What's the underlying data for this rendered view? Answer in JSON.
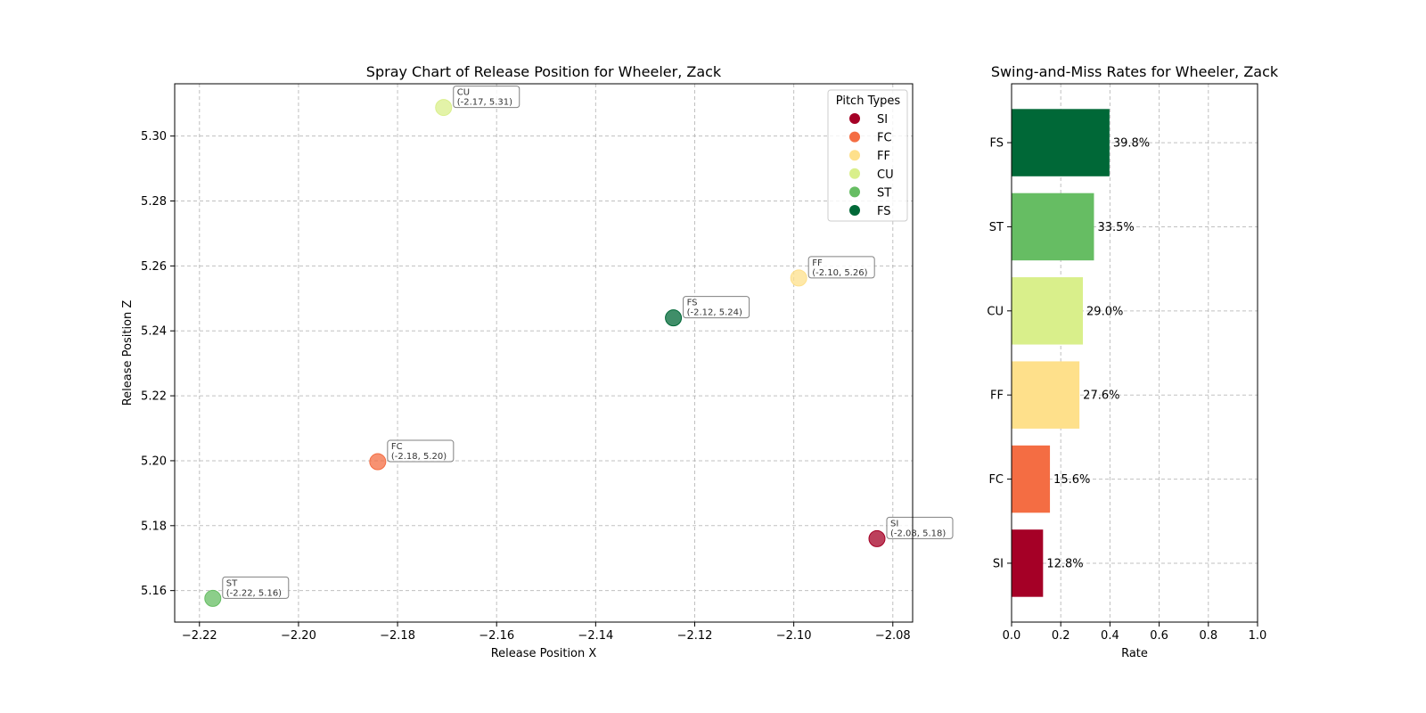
{
  "chart_data": [
    {
      "type": "scatter",
      "title": "Spray Chart of Release Position for Wheeler, Zack",
      "xlabel": "Release Position X",
      "ylabel": "Release Position Z",
      "xlim": [
        -2.225,
        -2.076
      ],
      "ylim": [
        5.1503,
        5.3161
      ],
      "xticks": [
        -2.22,
        -2.2,
        -2.18,
        -2.16,
        -2.14,
        -2.12,
        -2.1,
        -2.08
      ],
      "xtick_labels": [
        "−2.22",
        "−2.20",
        "−2.18",
        "−2.16",
        "−2.14",
        "−2.12",
        "−2.10",
        "−2.08"
      ],
      "yticks": [
        5.16,
        5.18,
        5.2,
        5.22,
        5.24,
        5.26,
        5.28,
        5.3
      ],
      "ytick_labels": [
        "5.16",
        "5.18",
        "5.20",
        "5.22",
        "5.24",
        "5.26",
        "5.28",
        "5.30"
      ],
      "grid": true,
      "legend": {
        "title": "Pitch Types",
        "placement": "top-right",
        "entries": [
          {
            "label": "SI",
            "color": "#a50026"
          },
          {
            "label": "FC",
            "color": "#f46d43"
          },
          {
            "label": "FF",
            "color": "#fee08b"
          },
          {
            "label": "CU",
            "color": "#d9ef8b"
          },
          {
            "label": "ST",
            "color": "#66bd63"
          },
          {
            "label": "FS",
            "color": "#006837"
          }
        ]
      },
      "points": [
        {
          "name": "SI",
          "x": -2.0832,
          "y": 5.176,
          "color": "#a50026",
          "annotation": "(-2.08, 5.18)"
        },
        {
          "name": "FC",
          "x": -2.184,
          "y": 5.1997,
          "color": "#f46d43",
          "annotation": "(-2.18, 5.20)"
        },
        {
          "name": "FF",
          "x": -2.099,
          "y": 5.2563,
          "color": "#fee08b",
          "annotation": "(-2.10, 5.26)"
        },
        {
          "name": "CU",
          "x": -2.1707,
          "y": 5.3088,
          "color": "#d9ef8b",
          "annotation": "(-2.17, 5.31)"
        },
        {
          "name": "ST",
          "x": -2.2173,
          "y": 5.1576,
          "color": "#66bd63",
          "annotation": "(-2.22, 5.16)"
        },
        {
          "name": "FS",
          "x": -2.1243,
          "y": 5.244,
          "color": "#006837",
          "annotation": "(-2.12, 5.24)"
        }
      ]
    },
    {
      "type": "bar",
      "orientation": "horizontal",
      "title": "Swing-and-Miss Rates for Wheeler, Zack",
      "xlabel": "Rate",
      "ylabel": "",
      "xlim": [
        0.0,
        1.0
      ],
      "xticks": [
        0.0,
        0.2,
        0.4,
        0.6,
        0.8,
        1.0
      ],
      "xtick_labels": [
        "0.0",
        "0.2",
        "0.4",
        "0.6",
        "0.8",
        "1.0"
      ],
      "grid": true,
      "categories": [
        "SI",
        "FC",
        "FF",
        "CU",
        "ST",
        "FS"
      ],
      "values": [
        0.128,
        0.156,
        0.276,
        0.29,
        0.335,
        0.398
      ],
      "value_labels": [
        "12.8%",
        "15.6%",
        "27.6%",
        "29.0%",
        "33.5%",
        "39.8%"
      ],
      "colors": [
        "#a50026",
        "#f46d43",
        "#fee08b",
        "#d9ef8b",
        "#66bd63",
        "#006837"
      ]
    }
  ]
}
